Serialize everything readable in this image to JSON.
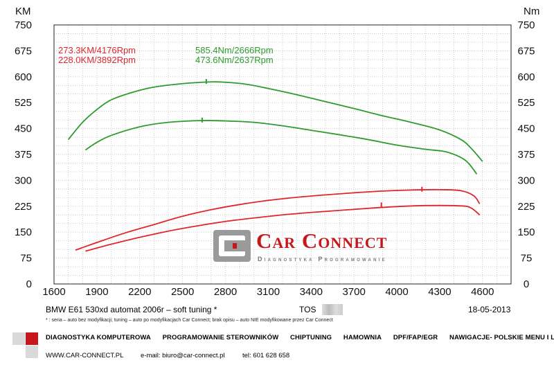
{
  "chart_data": {
    "type": "line",
    "left_axis_label": "KM",
    "right_axis_label": "Nm",
    "x_ticks": [
      1600,
      1900,
      2200,
      2500,
      2800,
      3100,
      3400,
      3700,
      4000,
      4300,
      4600
    ],
    "y_ticks": [
      0,
      75,
      150,
      225,
      300,
      375,
      450,
      525,
      600,
      675,
      750
    ],
    "xlim": [
      1600,
      4800
    ],
    "ylim": [
      0,
      750
    ],
    "grid": true,
    "series": [
      {
        "kind": "power-tuned",
        "color": "#e0262b",
        "x": [
          1750,
          1900,
          2100,
          2300,
          2500,
          2700,
          2900,
          3100,
          3300,
          3500,
          3700,
          3900,
          4100,
          4300,
          4450,
          4540,
          4580
        ],
        "y": [
          98,
          120,
          148,
          172,
          196,
          215,
          230,
          242,
          251,
          258,
          264,
          269,
          272,
          273,
          270,
          255,
          232
        ]
      },
      {
        "kind": "power-stock",
        "color": "#e0262b",
        "x": [
          1820,
          2000,
          2200,
          2400,
          2600,
          2800,
          3000,
          3200,
          3400,
          3600,
          3800,
          4000,
          4200,
          4450,
          4520,
          4580
        ],
        "y": [
          95,
          115,
          135,
          153,
          168,
          181,
          191,
          200,
          207,
          213,
          219,
          224,
          227,
          226,
          220,
          200
        ]
      },
      {
        "kind": "torque-tuned",
        "color": "#2e9b2e",
        "x": [
          1700,
          1800,
          1900,
          2000,
          2150,
          2300,
          2500,
          2700,
          2800,
          2950,
          3100,
          3300,
          3500,
          3700,
          3900,
          4100,
          4300,
          4450,
          4520,
          4600
        ],
        "y": [
          418,
          468,
          505,
          533,
          555,
          570,
          580,
          585,
          584,
          578,
          566,
          548,
          528,
          508,
          487,
          468,
          446,
          418,
          393,
          355
        ]
      },
      {
        "kind": "torque-stock",
        "color": "#2e9b2e",
        "x": [
          1820,
          1900,
          2000,
          2200,
          2400,
          2637,
          2800,
          3000,
          3200,
          3400,
          3600,
          3800,
          4000,
          4200,
          4350,
          4480,
          4560
        ],
        "y": [
          388,
          410,
          430,
          455,
          468,
          473,
          472,
          468,
          458,
          445,
          432,
          418,
          402,
          390,
          382,
          358,
          318
        ]
      }
    ],
    "peaks": {
      "power_tuned": "273.3KM/4176Rpm",
      "power_stock": "228.0KM/3892Rpm",
      "torque_tuned": "585.4Nm/2666Rpm",
      "torque_stock": "473.6Nm/2637Rpm"
    },
    "peak_markers": [
      {
        "kind": "power-tuned",
        "x": 4176,
        "y": 273.3,
        "color": "#e0262b"
      },
      {
        "kind": "power-stock",
        "x": 3892,
        "y": 228.0,
        "color": "#e0262b"
      },
      {
        "kind": "torque-tuned",
        "x": 2666,
        "y": 585.4,
        "color": "#2e9b2e"
      },
      {
        "kind": "torque-stock",
        "x": 2637,
        "y": 473.6,
        "color": "#2e9b2e"
      }
    ]
  },
  "logo": {
    "title": "Car Connect",
    "tagline": "Diagnostyka Programowanie",
    "colors": {
      "red": "#c8161d",
      "grey": "#8a8a8a"
    }
  },
  "footer": {
    "vehicle": "BMW E61 530xd automat 2006r – soft tuning *",
    "code": "TOS",
    "date": "18-05-2013",
    "note": "* : seria – auto bez modyfikacji; tuning – auto po modyfikacjach Car Connect; brak opisu – auto NIE modyfikowane przez Car Connect",
    "services": [
      "DIAGNOSTYKA KOMPUTEROWA",
      "PROGRAMOWANIE STEROWNIKÓW",
      "CHIPTUNING",
      "HAMOWNIA",
      "DPF/FAP/EGR",
      "NAWIGACJE- POLSKIE MENU I LEKTOR"
    ],
    "website": "WWW.CAR-CONNECT.PL",
    "email": "e-mail: biuro@car-connect.pl",
    "phone": "tel: 601 628 658"
  }
}
